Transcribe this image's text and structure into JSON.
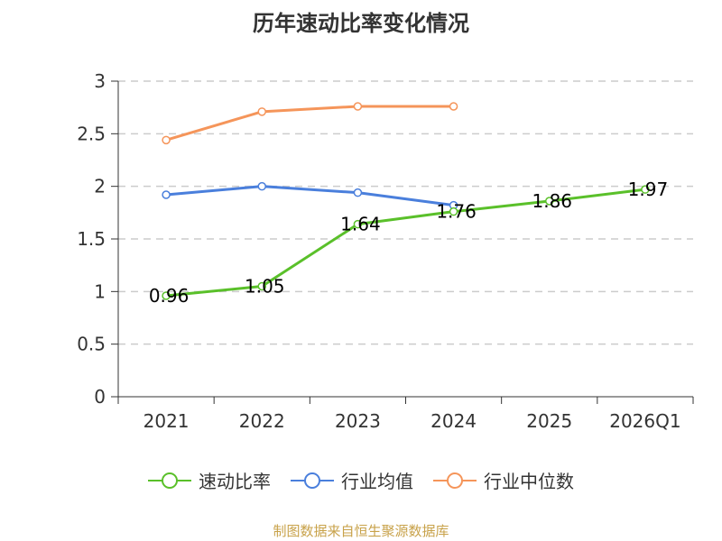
{
  "chart_data": {
    "type": "line",
    "title": "历年速动比率变化情况",
    "categories": [
      "2021",
      "2022",
      "2023",
      "2024",
      "2025",
      "2026Q1"
    ],
    "ylim": [
      0,
      3
    ],
    "yticks": [
      "0",
      "0.5",
      "1",
      "1.5",
      "2",
      "2.5",
      "3"
    ],
    "grid": true,
    "legend_position": "bottom",
    "series": [
      {
        "name": "速动比率",
        "color": "#5ac02a",
        "values": [
          0.96,
          1.05,
          1.64,
          1.76,
          1.86,
          1.97
        ],
        "labels": [
          "0.96",
          "1.05",
          "1.64",
          "1.76",
          "1.86",
          "1.97"
        ]
      },
      {
        "name": "行业均值",
        "color": "#4a7fdc",
        "values": [
          1.92,
          2.0,
          1.94,
          1.82,
          null,
          null
        ]
      },
      {
        "name": "行业中位数",
        "color": "#f5955a",
        "values": [
          2.44,
          2.71,
          2.76,
          2.76,
          null,
          null
        ]
      }
    ]
  },
  "source": "制图数据来自恒生聚源数据库"
}
